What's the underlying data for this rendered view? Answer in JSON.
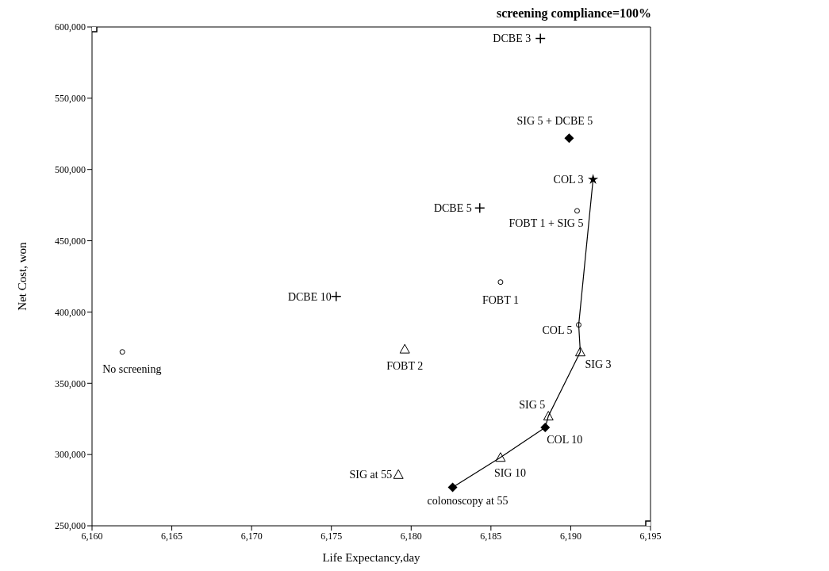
{
  "chart_data": {
    "type": "scatter",
    "title": "screening compliance=100%",
    "xlabel": "Life Expectancy,day",
    "ylabel": "Net Cost, won",
    "xlim": [
      6160,
      6195
    ],
    "ylim": [
      250000,
      600000
    ],
    "xticks": [
      {
        "value": 6160,
        "label": "6,160"
      },
      {
        "value": 6165,
        "label": "6,165"
      },
      {
        "value": 6170,
        "label": "6,170"
      },
      {
        "value": 6175,
        "label": "6,175"
      },
      {
        "value": 6180,
        "label": "6,180"
      },
      {
        "value": 6185,
        "label": "6,185"
      },
      {
        "value": 6190,
        "label": "6,190"
      },
      {
        "value": 6195,
        "label": "6,195"
      }
    ],
    "yticks": [
      {
        "value": 250000,
        "label": "250,000"
      },
      {
        "value": 300000,
        "label": "300,000"
      },
      {
        "value": 350000,
        "label": "350,000"
      },
      {
        "value": 400000,
        "label": "400,000"
      },
      {
        "value": 450000,
        "label": "450,000"
      },
      {
        "value": 500000,
        "label": "500,000"
      },
      {
        "value": 550000,
        "label": "550,000"
      },
      {
        "value": 600000,
        "label": "600,000"
      }
    ],
    "series": [
      {
        "name": "No screening",
        "color": "#000000",
        "marker": "circle",
        "x": [
          6161.9
        ],
        "values": [
          372000
        ]
      },
      {
        "name": "DCBE 3",
        "color": "#000000",
        "marker": "cross",
        "x": [
          6188.1
        ],
        "values": [
          592000
        ]
      },
      {
        "name": "SIG 5 + DCBE 5",
        "color": "#000000",
        "marker": "diamond",
        "x": [
          6189.9
        ],
        "values": [
          522000
        ]
      },
      {
        "name": "COL 3",
        "color": "#000000",
        "marker": "star",
        "x": [
          6191.4
        ],
        "values": [
          493000
        ]
      },
      {
        "name": "DCBE 5",
        "color": "#000000",
        "marker": "cross",
        "x": [
          6184.3
        ],
        "values": [
          473000
        ]
      },
      {
        "name": "FOBT 1 + SIG 5",
        "color": "#000000",
        "marker": "circle",
        "x": [
          6190.4
        ],
        "values": [
          471000
        ]
      },
      {
        "name": "DCBE 10",
        "color": "#000000",
        "marker": "cross",
        "x": [
          6175.3
        ],
        "values": [
          411000
        ]
      },
      {
        "name": "FOBT 1",
        "color": "#000000",
        "marker": "circle",
        "x": [
          6185.6
        ],
        "values": [
          421000
        ]
      },
      {
        "name": "FOBT 2",
        "color": "#000000",
        "marker": "triangle",
        "x": [
          6179.6
        ],
        "values": [
          374000
        ]
      },
      {
        "name": "COL 5",
        "color": "#000000",
        "marker": "circle",
        "x": [
          6190.5
        ],
        "values": [
          391000
        ]
      },
      {
        "name": "SIG 3",
        "color": "#000000",
        "marker": "triangle",
        "x": [
          6190.6
        ],
        "values": [
          372000
        ]
      },
      {
        "name": "SIG 5",
        "color": "#000000",
        "marker": "triangle",
        "x": [
          6188.6
        ],
        "values": [
          327000
        ]
      },
      {
        "name": "COL 10",
        "color": "#000000",
        "marker": "diamond",
        "x": [
          6188.4
        ],
        "values": [
          319000
        ]
      },
      {
        "name": "SIG 10",
        "color": "#000000",
        "marker": "triangle",
        "x": [
          6185.6
        ],
        "values": [
          298000
        ]
      },
      {
        "name": "colonoscopy at 55",
        "color": "#000000",
        "marker": "diamond",
        "x": [
          6182.6
        ],
        "values": [
          277000
        ]
      },
      {
        "name": "SIG at 55",
        "color": "#000000",
        "marker": "triangle",
        "x": [
          6179.2
        ],
        "values": [
          286000
        ]
      },
      {
        "color": "#000000",
        "marker": "square",
        "x": [
          6160,
          6195
        ],
        "values": [
          600000,
          250000
        ]
      },
      {
        "type": "line",
        "color": "#000000",
        "x": [
          6182.6,
          6185.6,
          6188.4,
          6188.6,
          6190.6,
          6190.5,
          6191.4
        ],
        "values": [
          277000,
          298000,
          319000,
          327000,
          372000,
          391000,
          493000
        ]
      }
    ]
  }
}
